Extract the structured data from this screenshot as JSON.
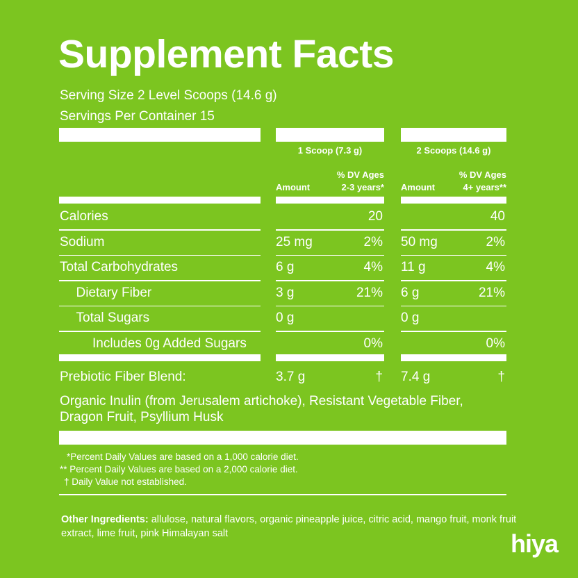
{
  "header": {
    "title": "Supplement Facts",
    "serving_size": "Serving Size 2 Level Scoops (14.6 g)",
    "servings_per_container": "Servings Per Container 15"
  },
  "columns": [
    {
      "heading": "1 Scoop (7.3 g)",
      "amount": "Amount",
      "dv": [
        "% DV Ages",
        "2-3 years*"
      ]
    },
    {
      "heading": "2 Scoops (14.6 g)",
      "amount": "Amount",
      "dv": [
        "% DV Ages",
        "4+ years**"
      ]
    }
  ],
  "rows": [
    {
      "name": "Calories",
      "indent": 0,
      "cells": [
        [
          null,
          "20"
        ],
        [
          null,
          "40"
        ]
      ]
    },
    {
      "name": "Sodium",
      "indent": 0,
      "cells": [
        [
          "25 mg",
          "2%"
        ],
        [
          "50 mg",
          "2%"
        ]
      ]
    },
    {
      "name": "Total Carbohydrates",
      "indent": 0,
      "cells": [
        [
          "6 g",
          "4%"
        ],
        [
          "11 g",
          "4%"
        ]
      ]
    },
    {
      "name": "Dietary Fiber",
      "indent": 1,
      "cells": [
        [
          "3 g",
          "21%"
        ],
        [
          "6 g",
          "21%"
        ]
      ]
    },
    {
      "name": "Total Sugars",
      "indent": 1,
      "cells": [
        [
          "0 g",
          null
        ],
        [
          "0 g",
          null
        ]
      ]
    },
    {
      "name": "Includes 0g Added Sugars",
      "indent": 2,
      "cells": [
        [
          null,
          "0%"
        ],
        [
          null,
          "0%"
        ]
      ]
    }
  ],
  "blend": {
    "name": "Prebiotic Fiber Blend:",
    "cells": [
      [
        "3.7 g",
        "†"
      ],
      [
        "7.4 g",
        "†"
      ]
    ],
    "contents": [
      "Organic Inulin (from Jerusalem artichoke), Resistant Vegetable Fiber,",
      "Dragon Fruit, Psyllium Husk"
    ]
  },
  "footnotes": [
    "*Percent Daily Values are based on a 1,000 calorie diet.",
    "** Percent Daily Values are based on a 2,000 calorie diet.",
    "† Daily Value not established."
  ],
  "other_ingredients": {
    "label": "Other Ingredients:",
    "text": "allulose, natural flavors, organic pineapple juice, citric acid, mango fruit, monk fruit extract, lime fruit, pink Himalayan salt"
  },
  "brand": "hiya"
}
